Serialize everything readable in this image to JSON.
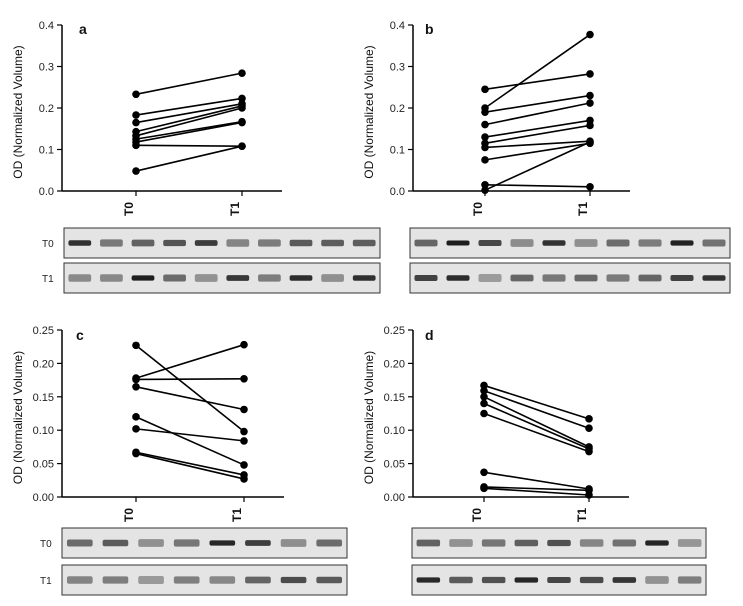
{
  "chart_data": [
    {
      "type": "line",
      "panel": "a",
      "ylabel": "OD (Normalized Volume)",
      "categories": [
        "T0",
        "T1"
      ],
      "ylim": [
        0,
        0.4
      ],
      "yticks": [
        0.0,
        0.1,
        0.2,
        0.3,
        0.4
      ],
      "yticklabels": [
        "0.0",
        "0.1",
        "0.2",
        "0.3",
        "0.4"
      ],
      "series": [
        {
          "name": "s1",
          "values": [
            0.233,
            0.284
          ]
        },
        {
          "name": "s2",
          "values": [
            0.183,
            0.223
          ]
        },
        {
          "name": "s3",
          "values": [
            0.165,
            0.21
          ]
        },
        {
          "name": "s4",
          "values": [
            0.143,
            0.205
          ]
        },
        {
          "name": "s5",
          "values": [
            0.133,
            0.2
          ]
        },
        {
          "name": "s6",
          "values": [
            0.125,
            0.167
          ]
        },
        {
          "name": "s7",
          "values": [
            0.118,
            0.165
          ]
        },
        {
          "name": "s8",
          "values": [
            0.11,
            0.108
          ]
        },
        {
          "name": "s9",
          "values": [
            0.048,
            0.108
          ]
        }
      ],
      "blot": {
        "rows": [
          "T0",
          "T1"
        ],
        "lanes": 10
      }
    },
    {
      "type": "line",
      "panel": "b",
      "ylabel": "OD (Normalized Volume)",
      "categories": [
        "T0",
        "T1"
      ],
      "ylim": [
        0,
        0.4
      ],
      "yticks": [
        0.0,
        0.1,
        0.2,
        0.3,
        0.4
      ],
      "yticklabels": [
        "0.0",
        "0.1",
        "0.2",
        "0.3",
        "0.4"
      ],
      "series": [
        {
          "name": "s1",
          "values": [
            0.245,
            0.282
          ]
        },
        {
          "name": "s2",
          "values": [
            0.2,
            0.377
          ]
        },
        {
          "name": "s3",
          "values": [
            0.19,
            0.23
          ]
        },
        {
          "name": "s4",
          "values": [
            0.16,
            0.212
          ]
        },
        {
          "name": "s5",
          "values": [
            0.13,
            0.17
          ]
        },
        {
          "name": "s6",
          "values": [
            0.115,
            0.158
          ]
        },
        {
          "name": "s7",
          "values": [
            0.105,
            0.12
          ]
        },
        {
          "name": "s8",
          "values": [
            0.075,
            0.115
          ]
        },
        {
          "name": "s9",
          "values": [
            0.015,
            0.01
          ]
        },
        {
          "name": "s10",
          "values": [
            0.002,
            0.118
          ]
        }
      ],
      "blot": {
        "rows": [
          "",
          ""
        ],
        "lanes": 10
      }
    },
    {
      "type": "line",
      "panel": "c",
      "ylabel": "OD (Normalized Volume)",
      "categories": [
        "T0",
        "T1"
      ],
      "ylim": [
        0,
        0.25
      ],
      "yticks": [
        0.0,
        0.05,
        0.1,
        0.15,
        0.2,
        0.25
      ],
      "yticklabels": [
        "0.00",
        "0.05",
        "0.10",
        "0.15",
        "0.20",
        "0.25"
      ],
      "series": [
        {
          "name": "s1",
          "values": [
            0.227,
            0.098
          ]
        },
        {
          "name": "s2",
          "values": [
            0.178,
            0.228
          ]
        },
        {
          "name": "s3",
          "values": [
            0.176,
            0.177
          ]
        },
        {
          "name": "s4",
          "values": [
            0.165,
            0.131
          ]
        },
        {
          "name": "s5",
          "values": [
            0.12,
            0.048
          ]
        },
        {
          "name": "s6",
          "values": [
            0.102,
            0.084
          ]
        },
        {
          "name": "s7",
          "values": [
            0.067,
            0.033
          ]
        },
        {
          "name": "s8",
          "values": [
            0.065,
            0.027
          ]
        }
      ],
      "blot": {
        "rows": [
          "T0",
          "T1"
        ],
        "lanes": 8
      }
    },
    {
      "type": "line",
      "panel": "d",
      "ylabel": "OD (Normalized Volume)",
      "categories": [
        "T0",
        "T1"
      ],
      "ylim": [
        0,
        0.25
      ],
      "yticks": [
        0.0,
        0.05,
        0.1,
        0.15,
        0.2,
        0.25
      ],
      "yticklabels": [
        "0.00",
        "0.05",
        "0.10",
        "0.15",
        "0.20",
        "0.25"
      ],
      "series": [
        {
          "name": "s1",
          "values": [
            0.167,
            0.117
          ]
        },
        {
          "name": "s2",
          "values": [
            0.159,
            0.103
          ]
        },
        {
          "name": "s3",
          "values": [
            0.15,
            0.075
          ]
        },
        {
          "name": "s4",
          "values": [
            0.14,
            0.072
          ]
        },
        {
          "name": "s5",
          "values": [
            0.125,
            0.068
          ]
        },
        {
          "name": "s6",
          "values": [
            0.037,
            0.012
          ]
        },
        {
          "name": "s7",
          "values": [
            0.015,
            0.01
          ]
        },
        {
          "name": "s8",
          "values": [
            0.013,
            0.003
          ]
        }
      ],
      "blot": {
        "rows": [
          "",
          ""
        ],
        "lanes": 9
      }
    }
  ]
}
